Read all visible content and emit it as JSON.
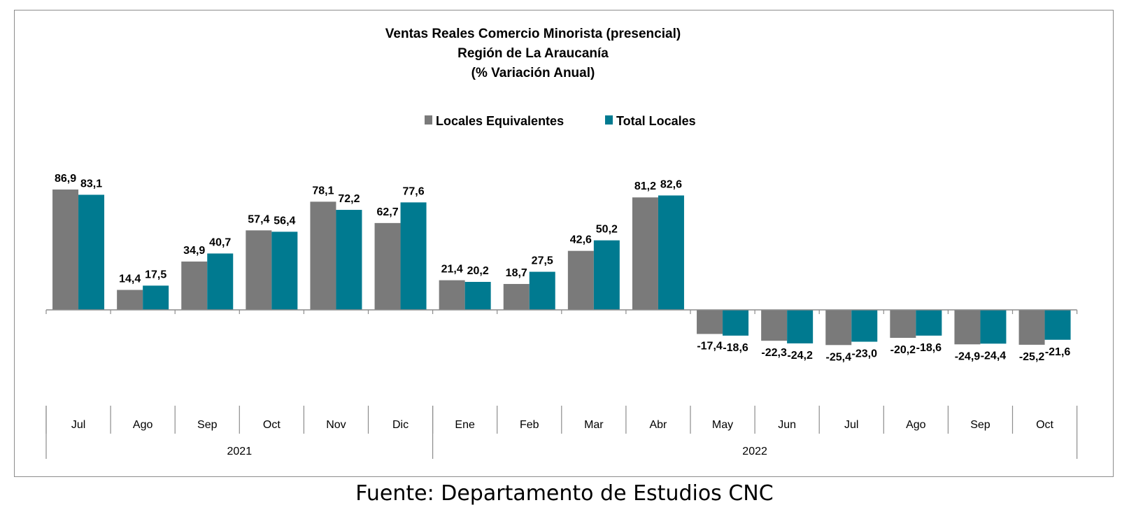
{
  "chart_data": {
    "type": "bar",
    "title": [
      "Ventas Reales Comercio Minorista (presencial)",
      "Región de La Araucanía",
      "(% Variación Anual)"
    ],
    "categories": [
      "Jul",
      "Ago",
      "Sep",
      "Oct",
      "Nov",
      "Dic",
      "Ene",
      "Feb",
      "Mar",
      "Abr",
      "May",
      "Jun",
      "Jul",
      "Ago",
      "Sep",
      "Oct"
    ],
    "groups": [
      {
        "label": "2021",
        "count": 6
      },
      {
        "label": "2022",
        "count": 10
      }
    ],
    "series": [
      {
        "name": "Locales Equivalentes",
        "color": "#7a7a7a",
        "values": [
          86.9,
          14.4,
          34.9,
          57.4,
          78.1,
          62.7,
          21.4,
          18.7,
          42.6,
          81.2,
          -17.4,
          -22.3,
          -25.4,
          -20.2,
          -24.9,
          -25.2
        ],
        "labels": [
          "86,9",
          "14,4",
          "34,9",
          "57,4",
          "78,1",
          "62,7",
          "21,4",
          "18,7",
          "42,6",
          "81,2",
          "-17,4",
          "-22,3",
          "-25,4",
          "-20,2",
          "-24,9",
          "-25,2"
        ]
      },
      {
        "name": "Total Locales",
        "color": "#007a90",
        "values": [
          83.1,
          17.5,
          40.7,
          56.4,
          72.2,
          77.6,
          20.2,
          27.5,
          50.2,
          82.6,
          -18.6,
          -24.2,
          -23.0,
          -18.6,
          -24.4,
          -21.6
        ],
        "labels": [
          "83,1",
          "17,5",
          "40,7",
          "56,4",
          "72,2",
          "77,6",
          "20,2",
          "27,5",
          "50,2",
          "82,6",
          "-18,6",
          "-24,2",
          "-23,0",
          "-18,6",
          "-24,4",
          "-21,6"
        ]
      }
    ],
    "ylim": [
      -60,
      100
    ],
    "grid": false,
    "legend_position": "top-center",
    "source": "Fuente: Departamento de Estudios CNC"
  }
}
